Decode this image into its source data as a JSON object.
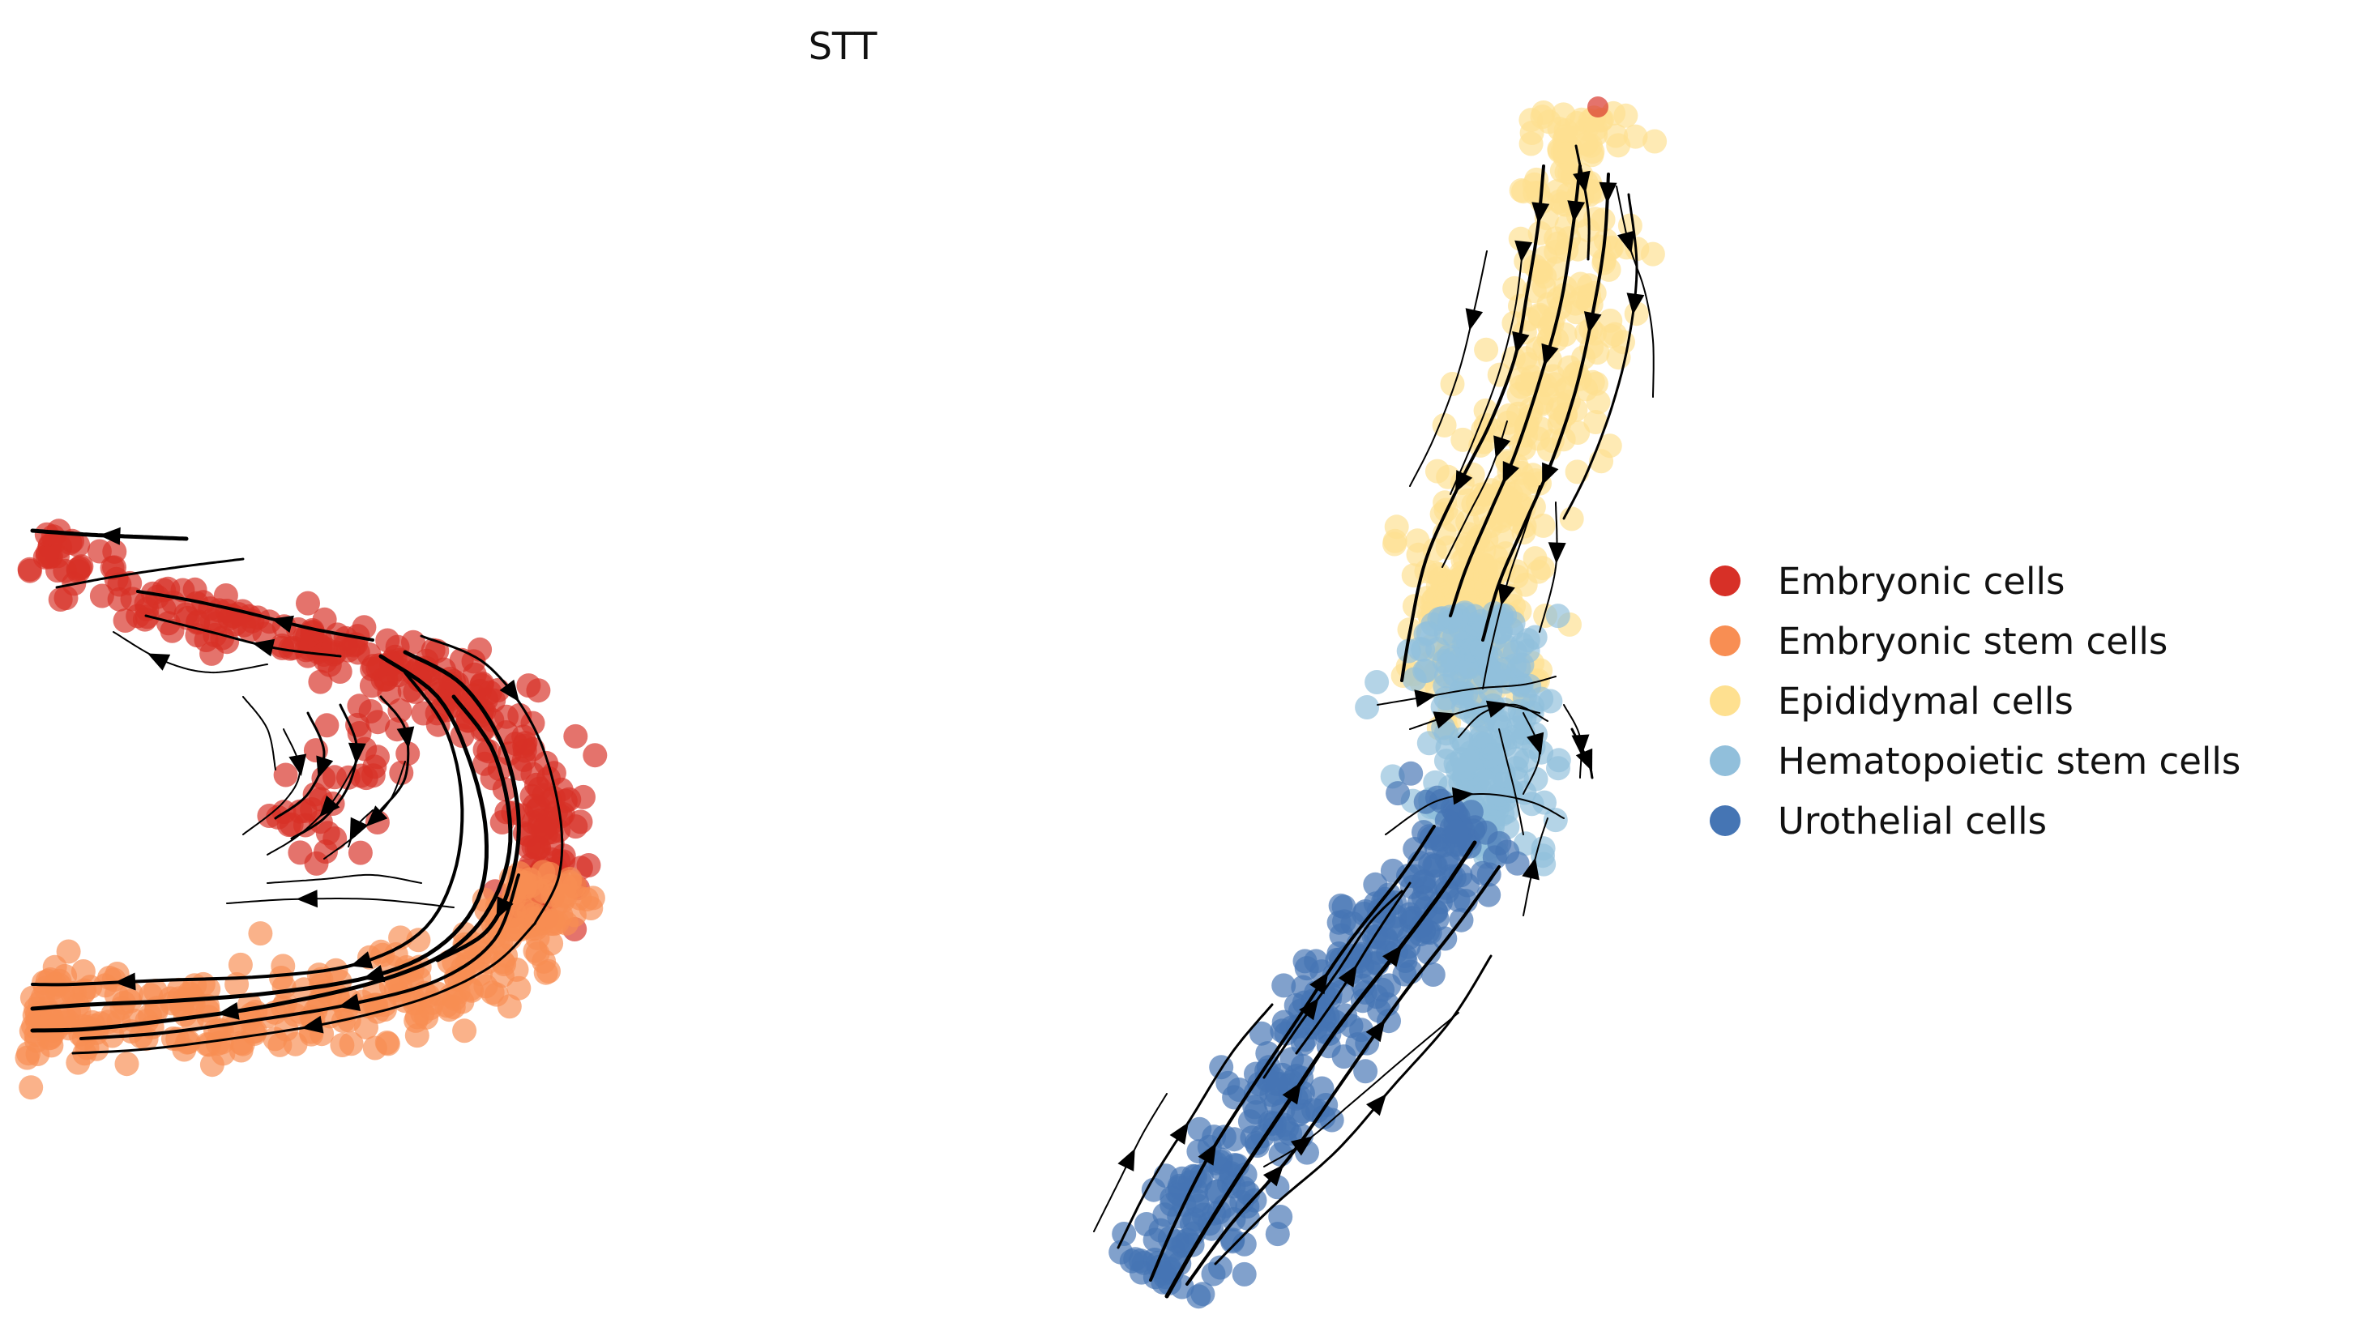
{
  "chart_data": {
    "type": "scatter",
    "title": "STT",
    "xlabel": "",
    "ylabel": "",
    "axes_visible": false,
    "grid": false,
    "legend_position": "right",
    "overlay": "velocity streamlines with arrowheads (black)",
    "series": [
      {
        "name": "Embryonic cells",
        "color": "#d73027"
      },
      {
        "name": "Embryonic stem cells",
        "color": "#f88e53"
      },
      {
        "name": "Epididymal cells",
        "color": "#fee090"
      },
      {
        "name": "Hematopoietic stem cells",
        "color": "#91bfdb"
      },
      {
        "name": "Urothelial cells",
        "color": "#4575b4"
      }
    ]
  }
}
